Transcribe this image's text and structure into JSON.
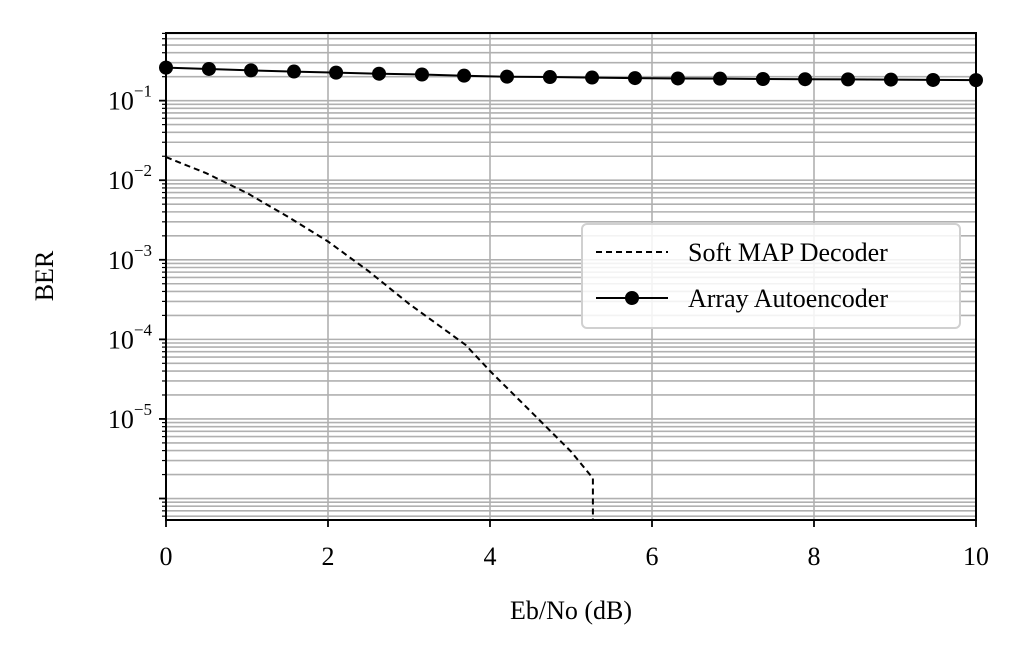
{
  "chart_data": {
    "type": "line",
    "xlabel": "Eb/No (dB)",
    "ylabel": "BER",
    "xlim": [
      0,
      10
    ],
    "ylim_log10": [
      -6.27,
      -0.15
    ],
    "y_scale": "log",
    "grid": "major and minor",
    "x_ticks": [
      "0",
      "2",
      "4",
      "6",
      "8",
      "10"
    ],
    "y_ticks": [
      {
        "base": "10",
        "exp": "−1",
        "value": 0.1
      },
      {
        "base": "10",
        "exp": "−2",
        "value": 0.01
      },
      {
        "base": "10",
        "exp": "−3",
        "value": 0.001
      },
      {
        "base": "10",
        "exp": "−4",
        "value": 0.0001
      },
      {
        "base": "10",
        "exp": "−5",
        "value": 1e-05
      }
    ],
    "legend_position": "center-right",
    "series": [
      {
        "name": "Soft MAP Decoder",
        "style": "dashed",
        "color": "#000000",
        "x": [
          0,
          0.5,
          1.0,
          1.5,
          2.0,
          2.5,
          3.0,
          3.5,
          3.7,
          4.0,
          4.5,
          5.0,
          5.27,
          5.27
        ],
        "y": [
          0.0195,
          0.0122,
          0.0069,
          0.0035,
          0.0017,
          0.00072,
          0.00028,
          0.00012,
          8.5e-05,
          4e-05,
          1.25e-05,
          3.9e-06,
          1.8e-06,
          5.4e-07
        ]
      },
      {
        "name": "Array Autoencoder",
        "style": "solid-with-markers",
        "color": "#000000",
        "x": [
          0,
          0.53,
          1.05,
          1.58,
          2.1,
          2.63,
          3.16,
          3.68,
          4.21,
          4.74,
          5.26,
          5.79,
          6.32,
          6.84,
          7.37,
          7.89,
          8.42,
          8.95,
          9.47,
          10
        ],
        "y": [
          0.26,
          0.25,
          0.24,
          0.232,
          0.225,
          0.218,
          0.213,
          0.206,
          0.2,
          0.198,
          0.195,
          0.192,
          0.19,
          0.189,
          0.187,
          0.186,
          0.185,
          0.184,
          0.182,
          0.181
        ]
      }
    ]
  }
}
